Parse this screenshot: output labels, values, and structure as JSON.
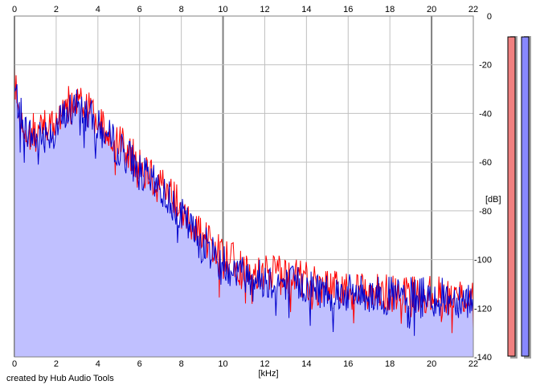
{
  "chart_data": {
    "type": "line",
    "title": "",
    "xlabel": "[kHz]",
    "ylabel": "[dB]",
    "xlim": [
      0,
      22
    ],
    "ylim": [
      -140,
      0
    ],
    "x_ticks": [
      0,
      2,
      4,
      6,
      8,
      10,
      12,
      14,
      16,
      18,
      20,
      22
    ],
    "y_ticks": [
      0,
      -20,
      -40,
      -60,
      -80,
      -100,
      -120,
      -140
    ],
    "grid": true,
    "fill_color": "#c0c0ff",
    "series": [
      {
        "color": "#ff0000",
        "x": [
          0,
          0.3,
          0.6,
          1,
          1.5,
          2,
          2.5,
          3,
          3.5,
          4,
          4.5,
          5,
          5.5,
          6,
          6.5,
          7,
          7.5,
          8,
          8.5,
          9,
          9.5,
          10,
          10.5,
          11,
          11.5,
          12,
          12.5,
          13,
          13.5,
          14,
          14.5,
          15,
          16,
          17,
          18,
          19,
          20,
          21,
          22
        ],
        "y": [
          -28,
          -38,
          -46,
          -48,
          -46,
          -44,
          -37,
          -34,
          -38,
          -44,
          -48,
          -52,
          -56,
          -62,
          -66,
          -68,
          -73,
          -80,
          -86,
          -90,
          -94,
          -98,
          -101,
          -104,
          -104,
          -106,
          -106,
          -107,
          -107,
          -109,
          -111,
          -112,
          -113,
          -113,
          -114,
          -114,
          -114,
          -115,
          -115
        ]
      },
      {
        "color": "#0000cc",
        "x": [
          0,
          0.3,
          0.6,
          1,
          1.5,
          2,
          2.5,
          3,
          3.5,
          4,
          4.5,
          5,
          5.5,
          6,
          6.5,
          7,
          7.5,
          8,
          8.5,
          9,
          9.5,
          10,
          10.5,
          11,
          11.5,
          12,
          12.5,
          13,
          13.5,
          14,
          14.5,
          15,
          16,
          17,
          18,
          19,
          20,
          21,
          22
        ],
        "y": [
          -30,
          -40,
          -48,
          -50,
          -48,
          -46,
          -40,
          -37,
          -40,
          -46,
          -50,
          -54,
          -58,
          -64,
          -68,
          -71,
          -76,
          -82,
          -88,
          -93,
          -97,
          -101,
          -104,
          -106,
          -107,
          -108,
          -109,
          -110,
          -110,
          -111,
          -112,
          -113,
          -114,
          -114,
          -115,
          -115,
          -115,
          -116,
          -116
        ]
      }
    ],
    "side_meters": [
      {
        "color": "#f08080",
        "level": 0.99
      },
      {
        "color": "#8888ff",
        "level": 0.99
      }
    ]
  },
  "credit": "created by Hub Audio Tools"
}
